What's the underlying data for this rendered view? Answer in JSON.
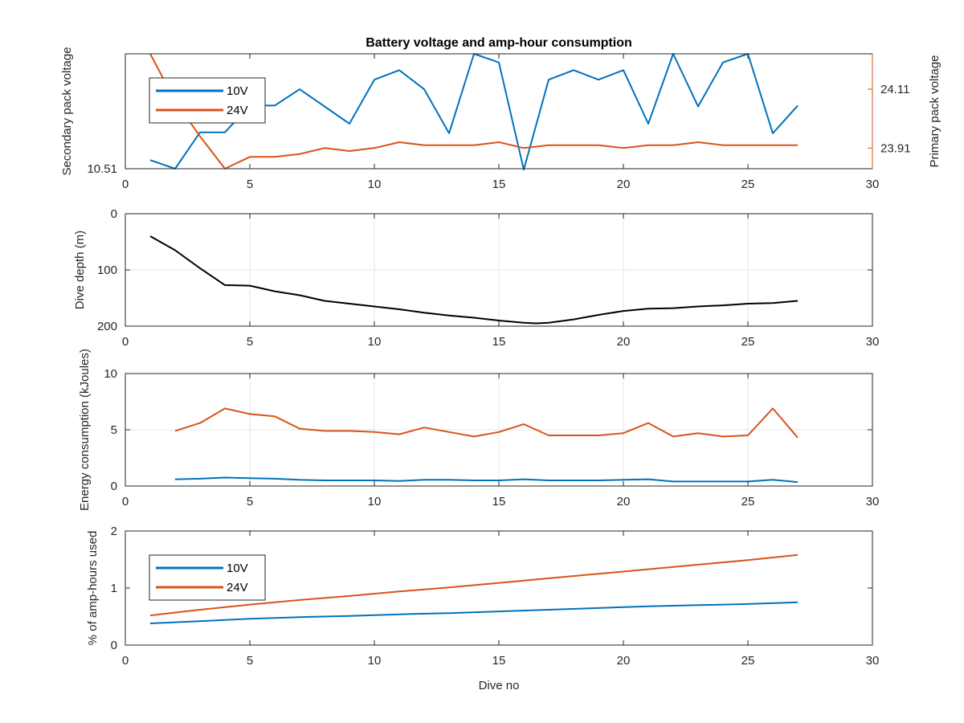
{
  "chart_data": [
    {
      "type": "line",
      "title": "Battery voltage and amp-hour consumption",
      "xlabel": "",
      "ylabel_left": "Secondary pack voltage",
      "ylabel_right": "Primary pack voltage",
      "xlim": [
        0,
        30
      ],
      "xticks": [
        "0",
        "5",
        "10",
        "15",
        "20",
        "25",
        "30"
      ],
      "ylim_left": [
        10.51,
        10.57
      ],
      "yticks_left": [
        "10.51"
      ],
      "ylim_right": [
        23.84,
        24.23
      ],
      "yticks_right": [
        "23.91",
        "24.11"
      ],
      "grid": false,
      "legend_position": "top-left",
      "x": [
        1,
        2,
        3,
        4,
        5,
        6,
        7,
        8,
        9,
        10,
        11,
        12,
        13,
        14,
        15,
        16,
        17,
        18,
        19,
        20,
        21,
        22,
        23,
        24,
        25,
        26,
        27
      ],
      "series": [
        {
          "name": "10V",
          "color": "#0072BD",
          "axis": "left",
          "values": [
            10.5145,
            10.51,
            10.529,
            10.529,
            10.543,
            10.543,
            10.5515,
            10.5425,
            10.5335,
            10.5565,
            10.5615,
            10.5515,
            10.5285,
            10.57,
            10.5655,
            10.5095,
            10.5565,
            10.5615,
            10.5565,
            10.5615,
            10.5335,
            10.57,
            10.5425,
            10.5655,
            10.57,
            10.5285,
            10.543
          ]
        },
        {
          "name": "24V",
          "color": "#D95319",
          "axis": "right",
          "values": [
            24.23,
            24.07,
            23.95,
            23.84,
            23.88,
            23.88,
            23.89,
            23.91,
            23.9,
            23.91,
            23.93,
            23.92,
            23.92,
            23.92,
            23.93,
            23.91,
            23.92,
            23.92,
            23.92,
            23.91,
            23.92,
            23.92,
            23.93,
            23.92,
            23.92,
            23.92,
            23.92
          ]
        }
      ]
    },
    {
      "type": "line",
      "title": "",
      "xlabel": "",
      "ylabel": "Dive depth (m)",
      "xlim": [
        0,
        30
      ],
      "xticks": [
        "0",
        "5",
        "10",
        "15",
        "20",
        "25",
        "30"
      ],
      "ylim": [
        0,
        200
      ],
      "y_reversed": true,
      "yticks": [
        "0",
        "100",
        "200"
      ],
      "grid": true,
      "x": [
        1,
        2,
        3,
        4,
        5,
        6,
        7,
        8,
        9,
        10,
        11,
        12,
        13,
        14,
        15,
        16,
        16.5,
        17,
        18,
        19,
        20,
        21,
        22,
        23,
        24,
        25,
        26,
        27
      ],
      "series": [
        {
          "name": "",
          "color": "#000000",
          "values": [
            40,
            65,
            97,
            127,
            128,
            138,
            145,
            155,
            160,
            165,
            170,
            176,
            181,
            185,
            190,
            194,
            195,
            194,
            188,
            180,
            173,
            169,
            168,
            165,
            163,
            160,
            159,
            155
          ]
        }
      ]
    },
    {
      "type": "line",
      "title": "",
      "xlabel": "",
      "ylabel": "Energy consumption (kJoules)",
      "xlim": [
        0,
        30
      ],
      "xticks": [
        "0",
        "5",
        "10",
        "15",
        "20",
        "25",
        "30"
      ],
      "ylim": [
        0,
        10
      ],
      "yticks": [
        "0",
        "5",
        "10"
      ],
      "grid": true,
      "x": [
        2,
        3,
        4,
        5,
        6,
        7,
        8,
        9,
        10,
        11,
        12,
        13,
        14,
        15,
        16,
        17,
        18,
        19,
        20,
        21,
        22,
        23,
        24,
        25,
        26,
        27
      ],
      "series": [
        {
          "name": "24V",
          "color": "#D95319",
          "values": [
            4.9,
            5.6,
            6.9,
            6.4,
            6.2,
            5.1,
            4.9,
            4.9,
            4.8,
            4.6,
            5.2,
            4.8,
            4.4,
            4.8,
            5.5,
            4.5,
            4.5,
            4.5,
            4.7,
            5.6,
            4.4,
            4.7,
            4.4,
            4.5,
            6.9,
            4.3
          ]
        },
        {
          "name": "10V",
          "color": "#0072BD",
          "values": [
            0.6,
            0.65,
            0.75,
            0.7,
            0.65,
            0.55,
            0.5,
            0.5,
            0.5,
            0.45,
            0.55,
            0.55,
            0.5,
            0.5,
            0.6,
            0.5,
            0.5,
            0.5,
            0.55,
            0.6,
            0.4,
            0.4,
            0.4,
            0.4,
            0.55,
            0.35
          ]
        }
      ]
    },
    {
      "type": "line",
      "title": "",
      "xlabel": "Dive no",
      "ylabel": "% of amp-hours used",
      "xlim": [
        0,
        30
      ],
      "xticks": [
        "0",
        "5",
        "10",
        "15",
        "20",
        "25",
        "30"
      ],
      "ylim": [
        0,
        2
      ],
      "yticks": [
        "0",
        "1",
        "2"
      ],
      "grid": false,
      "legend_position": "top-left",
      "x": [
        1,
        3,
        5,
        7,
        9,
        11,
        13,
        15,
        17,
        19,
        21,
        23,
        25,
        27
      ],
      "series": [
        {
          "name": "10V",
          "color": "#0072BD",
          "values": [
            0.38,
            0.42,
            0.46,
            0.49,
            0.51,
            0.54,
            0.56,
            0.59,
            0.62,
            0.65,
            0.68,
            0.7,
            0.72,
            0.75
          ]
        },
        {
          "name": "24V",
          "color": "#D95319",
          "values": [
            0.52,
            0.62,
            0.71,
            0.79,
            0.86,
            0.94,
            1.01,
            1.09,
            1.17,
            1.25,
            1.33,
            1.41,
            1.49,
            1.58
          ]
        }
      ]
    }
  ]
}
